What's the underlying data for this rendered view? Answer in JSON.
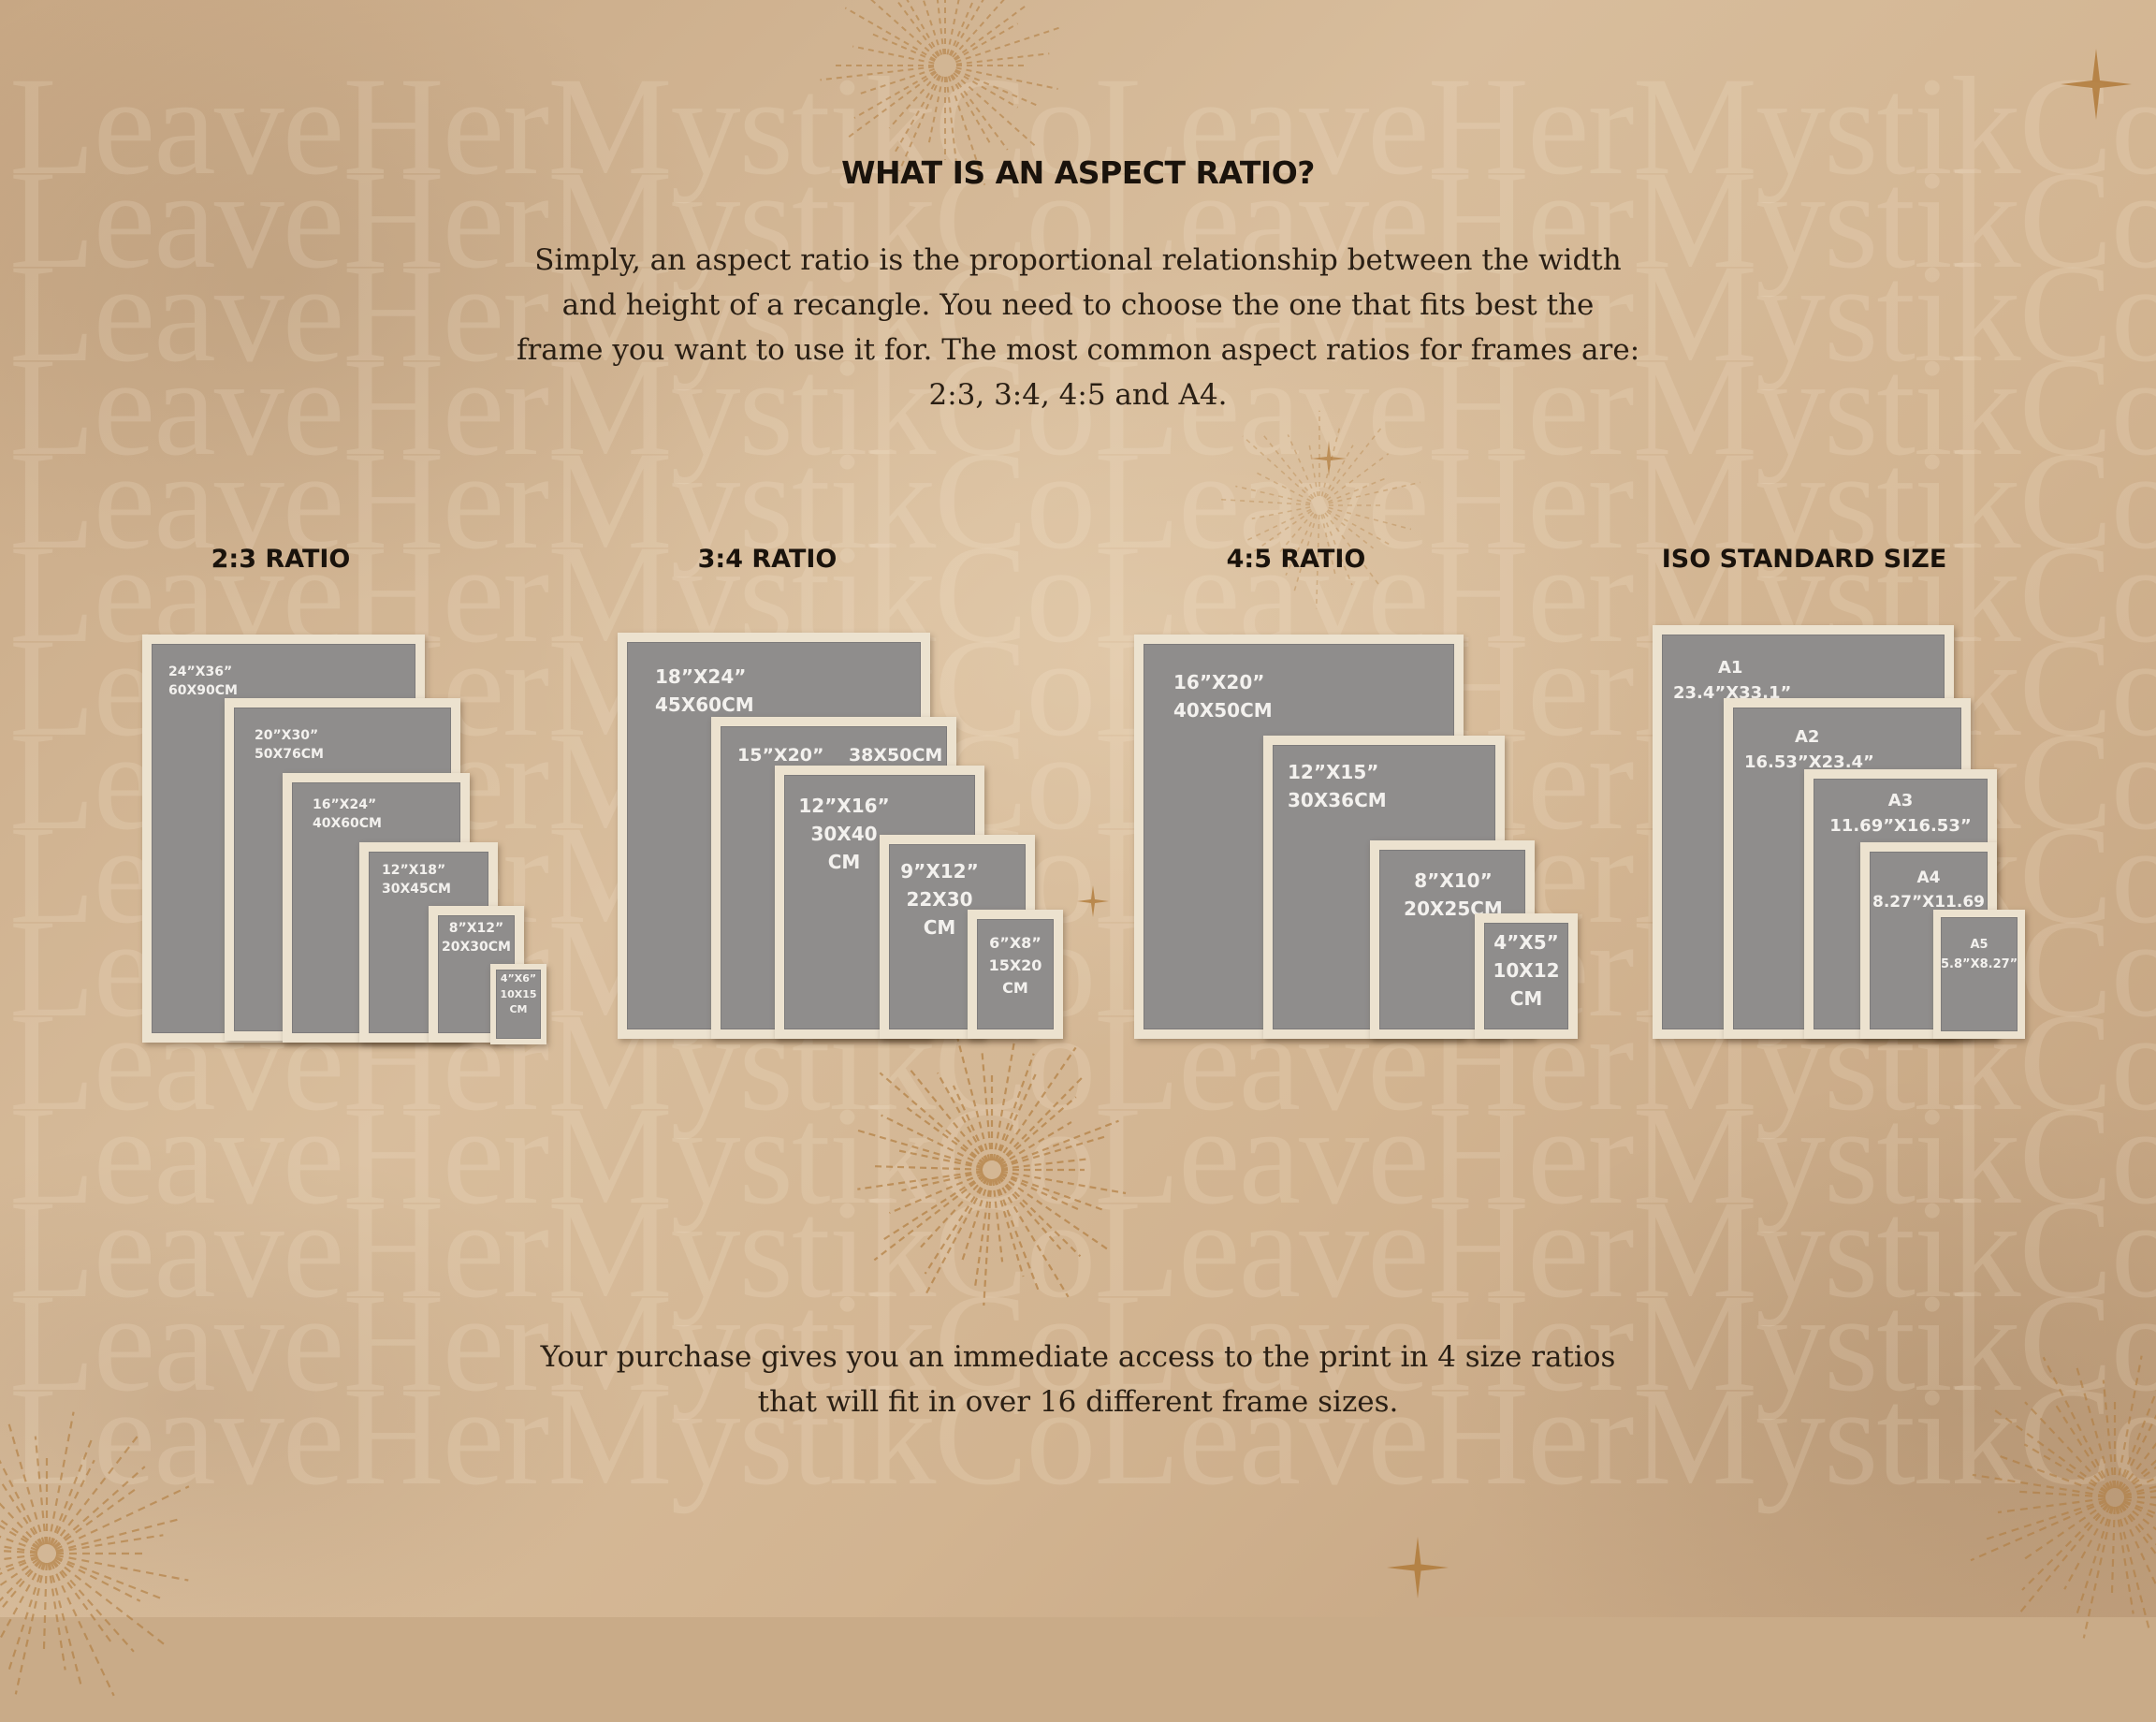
{
  "watermark_text": "LeaveHerMystikCoLeaveHerMystikCo",
  "title": "WHAT IS AN ASPECT RATIO?",
  "intro_lines": [
    "Simply, an aspect ratio is the proportional relationship between the width",
    "and height of a recangle. You need to choose the one that fits best the",
    "frame you want to use it for. The most common aspect ratios for frames are:",
    "2:3, 3:4, 4:5 and A4."
  ],
  "ratio_groups": [
    {
      "label": "2:3 RATIO",
      "frames": [
        {
          "l1": "24”X36”",
          "l2": "60X90CM"
        },
        {
          "l1": "20”X30”",
          "l2": "50X76CM"
        },
        {
          "l1": "16”X24”",
          "l2": "40X60CM"
        },
        {
          "l1": "12”X18”",
          "l2": "30X45CM"
        },
        {
          "l1": "8”X12”",
          "l2": "20X30CM"
        },
        {
          "l1": "4”X6”",
          "l2": "10X15",
          "l3": "CM"
        }
      ]
    },
    {
      "label": "3:4 RATIO",
      "frames": [
        {
          "l1": "18”X24”",
          "l2": "45X60CM"
        },
        {
          "l1": "15”X20”    38X50CM"
        },
        {
          "l1": "12”X16”",
          "l2": "30X40",
          "l3": "CM"
        },
        {
          "l1": "9”X12”",
          "l2": "22X30",
          "l3": "CM"
        },
        {
          "l1": "6”X8”",
          "l2": "15X20",
          "l3": "CM"
        }
      ]
    },
    {
      "label": "4:5 RATIO",
      "frames": [
        {
          "l1": "16”X20”",
          "l2": "40X50CM"
        },
        {
          "l1": "12”X15”",
          "l2": "30X36CM"
        },
        {
          "l1": "8”X10”",
          "l2": "20X25CM"
        },
        {
          "l1": "4”X5”",
          "l2": "10X12",
          "l3": "CM"
        }
      ]
    },
    {
      "label": "ISO STANDARD SIZE",
      "frames": [
        {
          "l1": "A1",
          "l2": "23.4”X33.1”"
        },
        {
          "l1": "A2",
          "l2": "16.53”X23.4”"
        },
        {
          "l1": "A3",
          "l2": "11.69”X16.53”"
        },
        {
          "l1": "A4",
          "l2": "8.27”X11.69"
        },
        {
          "l1": "A5",
          "l2": "5.8”X8.27”"
        }
      ]
    }
  ],
  "footer_lines": [
    "Your purchase gives you an immediate access to the print in 4 size ratios",
    "that will fit in over 16 different frame sizes."
  ],
  "colors": {
    "background": "#c9ab88",
    "frame_border": "#ece2cf",
    "frame_fill": "#8f8d8c",
    "text_dark": "#1a130c",
    "sparkle": "#b07a3a"
  }
}
